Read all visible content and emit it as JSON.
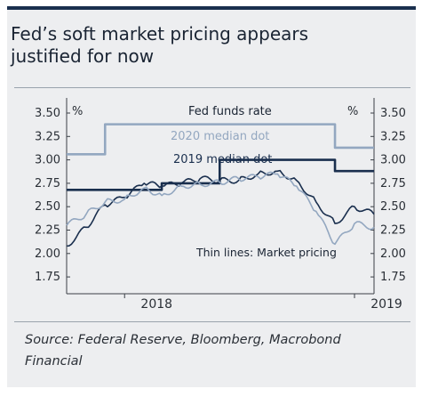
{
  "chart_data": {
    "type": "line",
    "title": "Fed’s soft market pricing appears justified for now",
    "left_unit": "%",
    "right_unit": "%",
    "ylim": [
      1.75,
      3.5
    ],
    "y_ticks": [
      1.75,
      2.0,
      2.25,
      2.5,
      2.75,
      3.0,
      3.25,
      3.5
    ],
    "y_tick_labels": [
      "1.75",
      "2.00",
      "2.25",
      "2.50",
      "2.75",
      "3.00",
      "3.25",
      "3.50"
    ],
    "x_tick_labels": [
      "2018",
      "2019"
    ],
    "xlim": [
      "2017-10",
      "2019-02"
    ],
    "annotations": [
      "Thin lines: Market pricing"
    ],
    "series": [
      {
        "name": "Fed funds rate",
        "color": "#1a2f4e",
        "style": "step",
        "x": [
          "2017-10",
          "2017-12",
          "2018-03",
          "2018-06",
          "2018-09",
          "2018-12",
          "2019-02"
        ],
        "values": [
          2.68,
          2.68,
          2.75,
          3.0,
          3.0,
          2.88,
          2.88
        ]
      },
      {
        "name": "2020 median dot",
        "color": "#93a7c0",
        "style": "step",
        "x": [
          "2017-10",
          "2017-12",
          "2018-12",
          "2019-02"
        ],
        "values": [
          3.06,
          3.38,
          3.13,
          3.13
        ]
      },
      {
        "name": "2019 median dot",
        "color": "#1a2f4e",
        "style": "line",
        "x": [
          "2017-10",
          "2017-11",
          "2017-12",
          "2018-01",
          "2018-02",
          "2018-03",
          "2018-04",
          "2018-05",
          "2018-06",
          "2018-07",
          "2018-08",
          "2018-09",
          "2018-10",
          "2018-11",
          "2018-12",
          "2019-01",
          "2019-02"
        ],
        "values": [
          2.08,
          2.28,
          2.52,
          2.6,
          2.75,
          2.72,
          2.75,
          2.8,
          2.78,
          2.78,
          2.85,
          2.88,
          2.78,
          2.55,
          2.32,
          2.5,
          2.42
        ]
      },
      {
        "name": "2020 median dot pricing",
        "color": "#93a7c0",
        "style": "line",
        "x": [
          "2017-10",
          "2017-11",
          "2017-12",
          "2018-01",
          "2018-02",
          "2018-03",
          "2018-04",
          "2018-05",
          "2018-06",
          "2018-07",
          "2018-08",
          "2018-09",
          "2018-10",
          "2018-11",
          "2018-12",
          "2019-01",
          "2019-02"
        ],
        "values": [
          2.3,
          2.42,
          2.55,
          2.58,
          2.7,
          2.62,
          2.72,
          2.74,
          2.76,
          2.8,
          2.82,
          2.85,
          2.72,
          2.45,
          2.1,
          2.32,
          2.28
        ]
      }
    ],
    "labels": {
      "fed_funds": "Fed funds rate",
      "median_2020": "2020 median dot",
      "median_2019": "2019 median dot",
      "thin": "Thin lines: Market pricing"
    }
  },
  "source": "Source: Federal Reserve, Bloomberg, Macrobond Financial",
  "colors": {
    "navy": "#1a2f4e",
    "light_blue": "#93a7c0",
    "background": "#edeef0"
  }
}
